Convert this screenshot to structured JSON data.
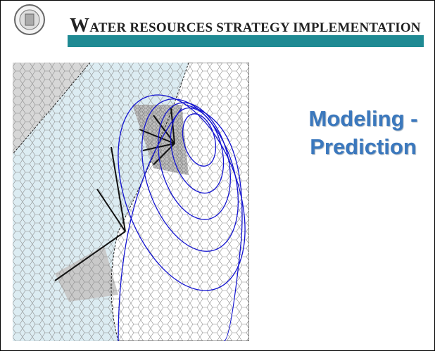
{
  "header": {
    "title": "WATER RESOURCES STRATEGY IMPLEMENTATION"
  },
  "slide": {
    "title_lines": [
      "Modeling -",
      "Prediction"
    ]
  }
}
